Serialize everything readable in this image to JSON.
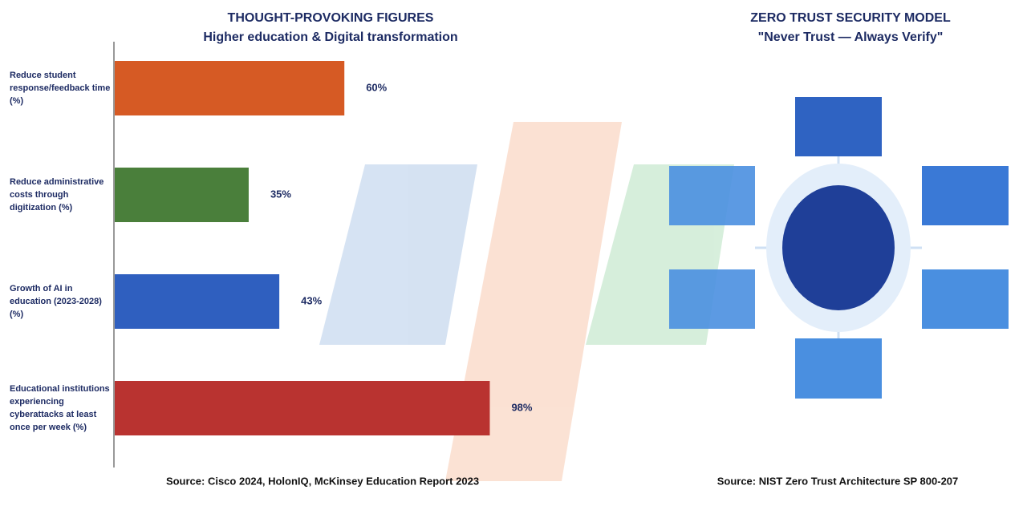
{
  "chart_data": {
    "type": "bar",
    "orientation": "horizontal",
    "title": "THOUGHT-PROVOKING FIGURES",
    "subtitle": "Higher education & Digital transformation",
    "categories": [
      "Reduce student response/feedback time (%)",
      "Reduce administrative costs through digitization (%)",
      "Growth of AI in education (2023-2028) (%)",
      "Educational institutions experiencing cyberattacks at least once per week (%)"
    ],
    "values": [
      60,
      35,
      43,
      98
    ],
    "value_labels": [
      "60%",
      "35%",
      "43%",
      "98%"
    ],
    "colors": [
      "#d65a24",
      "#4a7f3b",
      "#2f5fbf",
      "#b93330"
    ],
    "source": "Source: Cisco 2024, HolonIQ, McKinsey Education Report 2023"
  },
  "diagram": {
    "title": "ZERO TRUST SECURITY MODEL",
    "subtitle": "\"Never Trust — Always Verify\"",
    "source": "Source: NIST Zero Trust Architecture SP 800-207"
  }
}
